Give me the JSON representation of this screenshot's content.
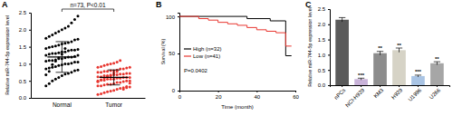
{
  "chart_data": [
    {
      "panel": "A",
      "type": "dotplot",
      "title": "n=73, P<0.01",
      "categories": [
        "Normal",
        "Tumor"
      ],
      "values": [
        1.2,
        0.6
      ],
      "error": [
        0.45,
        0.22
      ],
      "colors": [
        "#000000",
        "#e8362f"
      ],
      "points": [
        [
          0.35,
          0.42,
          0.5,
          0.55,
          0.6,
          0.65,
          0.7,
          0.72,
          0.75,
          0.8,
          0.82,
          0.85,
          0.88,
          0.9,
          0.92,
          0.95,
          0.97,
          1.0,
          1.0,
          1.02,
          1.05,
          1.05,
          1.08,
          1.1,
          1.1,
          1.12,
          1.15,
          1.15,
          1.18,
          1.2,
          1.2,
          1.22,
          1.25,
          1.25,
          1.28,
          1.3,
          1.3,
          1.32,
          1.35,
          1.35,
          1.38,
          1.4,
          1.4,
          1.42,
          1.45,
          1.48,
          1.5,
          1.52,
          1.55,
          1.58,
          1.6,
          1.62,
          1.65,
          1.7,
          1.72,
          1.75,
          1.8,
          1.85,
          1.9,
          1.95,
          2.0,
          2.05,
          2.1,
          2.2,
          2.3,
          2.4,
          0.68,
          0.78,
          0.98,
          1.08,
          1.18,
          1.28,
          1.45
        ],
        [
          0.1,
          0.12,
          0.15,
          0.18,
          0.2,
          0.22,
          0.25,
          0.28,
          0.3,
          0.3,
          0.32,
          0.35,
          0.35,
          0.38,
          0.4,
          0.4,
          0.42,
          0.45,
          0.45,
          0.48,
          0.5,
          0.5,
          0.5,
          0.52,
          0.52,
          0.55,
          0.55,
          0.55,
          0.58,
          0.58,
          0.6,
          0.6,
          0.6,
          0.62,
          0.62,
          0.65,
          0.65,
          0.65,
          0.68,
          0.68,
          0.7,
          0.7,
          0.72,
          0.72,
          0.75,
          0.75,
          0.78,
          0.78,
          0.8,
          0.8,
          0.82,
          0.85,
          0.85,
          0.88,
          0.9,
          0.9,
          0.92,
          0.95,
          0.98,
          1.0,
          1.02,
          1.05,
          1.1,
          0.25,
          0.33,
          0.43,
          0.47,
          0.53,
          0.57,
          0.63,
          0.67,
          0.73,
          0.77
        ]
      ],
      "ylabel": "Relative miR-744-5p expression level",
      "ylim": [
        0,
        2.5
      ],
      "yticks": [
        {
          "value": 0,
          "label": "0.0"
        },
        {
          "value": 0.5,
          "label": "0.5"
        },
        {
          "value": 1,
          "label": "1.0"
        },
        {
          "value": 1.5,
          "label": "1.5"
        },
        {
          "value": 2,
          "label": "2.0"
        },
        {
          "value": 2.5,
          "label": "2.5"
        }
      ]
    },
    {
      "panel": "B",
      "type": "line",
      "xlabel": "Time (month)",
      "ylabel": "Survival (%)",
      "xlim": [
        0,
        60
      ],
      "xticks": [
        0,
        20,
        40,
        60
      ],
      "ylim": [
        0,
        105
      ],
      "yticks": [
        0,
        50,
        100
      ],
      "line_style": "step",
      "legend": "lower left",
      "annotation": "P=0.0402",
      "series": [
        {
          "name": "High (n=32)",
          "color": "#000000",
          "x": [
            0,
            35,
            47,
            55,
            58
          ],
          "values": [
            100,
            97,
            94,
            47,
            47
          ]
        },
        {
          "name": "Low (n=41)",
          "color": "#e8362f",
          "x": [
            0,
            10,
            15,
            20,
            25,
            30,
            35,
            40,
            45,
            50,
            55,
            58
          ],
          "values": [
            100,
            97,
            95,
            92,
            90,
            88,
            85,
            82,
            80,
            78,
            60,
            60
          ]
        }
      ]
    },
    {
      "panel": "C",
      "type": "bar",
      "categories": [
        "nPCs",
        "NCI-H929",
        "KM3",
        "H929",
        "U1996",
        "U266"
      ],
      "values": [
        2.15,
        0.2,
        1.05,
        1.15,
        0.3,
        0.72
      ],
      "error": [
        0.07,
        0.03,
        0.06,
        0.07,
        0.03,
        0.05
      ],
      "colors": [
        "#5a5a5a",
        "#c9b3d9",
        "#8c8c8c",
        "#d6d3c6",
        "#a9c4e4",
        "#a6a6a6"
      ],
      "significance": [
        null,
        "***",
        "**",
        "**",
        "***",
        "**"
      ],
      "ylabel": "Relative miR-744-5p expression level",
      "ylim": [
        0,
        2.5
      ],
      "yticks": [
        {
          "value": 0,
          "label": "0.0"
        },
        {
          "value": 0.5,
          "label": "0.5"
        },
        {
          "value": 1,
          "label": "1.0"
        },
        {
          "value": 1.5,
          "label": "1.5"
        },
        {
          "value": 2,
          "label": "2.0"
        },
        {
          "value": 2.5,
          "label": "2.5"
        }
      ]
    }
  ]
}
